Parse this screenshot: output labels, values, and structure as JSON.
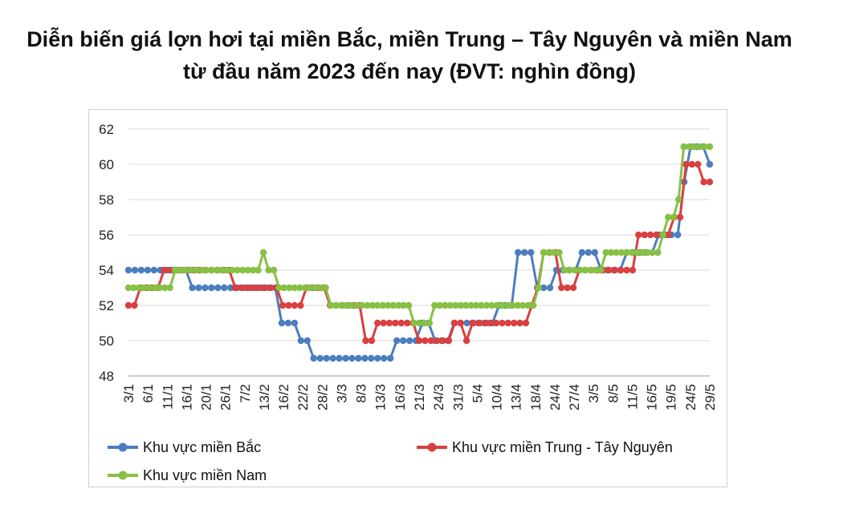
{
  "chart_data": {
    "type": "line",
    "title": "Diễn biến giá lợn hơi tại miền Bắc, miền Trung – Tây Nguyên và miền Nam",
    "subtitle": "từ đầu năm 2023 đến nay (ĐVT: nghìn đồng)",
    "ylim": [
      48,
      62
    ],
    "yticks": [
      48,
      50,
      52,
      54,
      56,
      58,
      60,
      62
    ],
    "grid": true,
    "legend_position": "bottom",
    "x_tick_labels": [
      "3/1",
      "6/1",
      "11/1",
      "16/1",
      "20/1",
      "26/1",
      "7/2",
      "13/2",
      "16/2",
      "22/2",
      "28/2",
      "3/3",
      "8/3",
      "13/3",
      "16/3",
      "21/3",
      "24/3",
      "31/3",
      "5/4",
      "10/4",
      "13/4",
      "18/4",
      "24/4",
      "27/4",
      "3/5",
      "8/5",
      "11/5",
      "16/5",
      "19/5",
      "24/5",
      "29/5"
    ],
    "series": [
      {
        "name": "Khu vực miền Bắc",
        "color": "#4a7ebf",
        "values": [
          54,
          54,
          54,
          54,
          54,
          54,
          54,
          54,
          54,
          54,
          53,
          53,
          53,
          53,
          53,
          53,
          53,
          53,
          53,
          53,
          53,
          53,
          53,
          53,
          51,
          51,
          51,
          50,
          50,
          49,
          49,
          49,
          49,
          49,
          49,
          49,
          49,
          49,
          49,
          49,
          49,
          49,
          50,
          50,
          50,
          50,
          51,
          51,
          50,
          50,
          50,
          51,
          51,
          51,
          51,
          51,
          51,
          51,
          52,
          52,
          52,
          55,
          55,
          55,
          53,
          53,
          53,
          54,
          54,
          54,
          54,
          55,
          55,
          55,
          54,
          54,
          54,
          54,
          55,
          55,
          55,
          55,
          55,
          56,
          56,
          56,
          56,
          59,
          61,
          61,
          61,
          60
        ]
      },
      {
        "name": "Khu vực miền Trung  - Tây Nguyên",
        "color": "#d94040",
        "values": [
          52,
          52,
          53,
          53,
          53,
          53,
          54,
          54,
          54,
          54,
          54,
          54,
          54,
          54,
          54,
          54,
          54,
          54,
          53,
          53,
          53,
          53,
          53,
          53,
          53,
          53,
          52,
          52,
          52,
          52,
          53,
          53,
          53,
          53,
          52,
          52,
          52,
          52,
          52,
          52,
          50,
          50,
          51,
          51,
          51,
          51,
          51,
          51,
          51,
          50,
          50,
          50,
          50,
          50,
          50,
          51,
          51,
          50,
          51,
          51,
          51,
          51,
          51,
          51,
          51,
          51,
          51,
          51,
          52,
          53,
          55,
          55,
          55,
          53,
          53,
          53,
          54,
          54,
          54,
          54,
          54,
          54,
          54,
          54,
          54,
          54,
          56,
          56,
          56,
          56,
          56,
          56,
          57,
          57,
          60,
          60,
          60,
          59,
          59
        ]
      },
      {
        "name": "Khu vực miền Nam",
        "color": "#86c045",
        "values": [
          53,
          53,
          53,
          53,
          53,
          53,
          53,
          53,
          53,
          54,
          54,
          54,
          54,
          54,
          54,
          54,
          54,
          54,
          54,
          54,
          54,
          54,
          54,
          54,
          54,
          54,
          55,
          54,
          54,
          53,
          53,
          53,
          53,
          53,
          53,
          53,
          53,
          53,
          53,
          52,
          52,
          52,
          52,
          52,
          52,
          52,
          52,
          52,
          52,
          52,
          52,
          52,
          52,
          52,
          52,
          51,
          51,
          51,
          51,
          52,
          52,
          52,
          52,
          52,
          52,
          52,
          52,
          52,
          52,
          52,
          52,
          52,
          52,
          52,
          52,
          52,
          52,
          52,
          52,
          53,
          55,
          55,
          55,
          55,
          54,
          54,
          54,
          54,
          54,
          54,
          54,
          54,
          55,
          55,
          55,
          55,
          55,
          55,
          55,
          55,
          55,
          55,
          55,
          56,
          57,
          57,
          58,
          61,
          61,
          61,
          61,
          61,
          61
        ]
      }
    ]
  }
}
